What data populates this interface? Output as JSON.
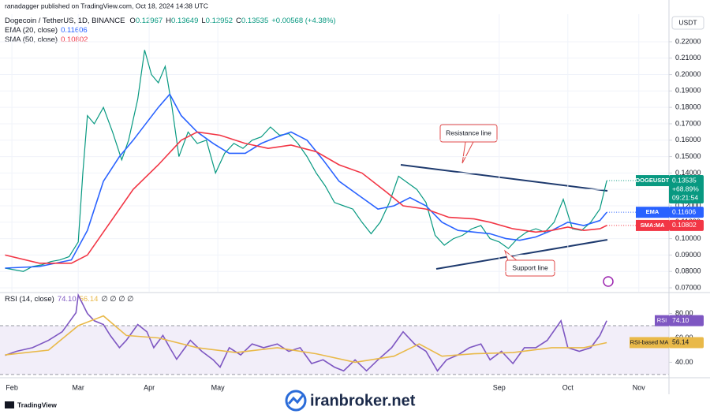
{
  "ui": {
    "publisher": "ranadagger published on TradingView.com, Oct 18, 2024 14:38 UTC",
    "symbol": "Dogecoin / TetherUS, 1D, BINANCE",
    "ohlc": [
      {
        "key": "O",
        "value": 0.12967
      },
      {
        "key": "H",
        "value": 0.13649
      },
      {
        "key": "L",
        "value": 0.12952
      },
      {
        "key": "C",
        "value": 0.13535
      }
    ],
    "change": "+0.00568 (+4.38%)",
    "currency": "USDT",
    "price_change": "+68.89%",
    "countdown": "09:21:54",
    "rsi_extra": "∅ ∅ ∅ ∅",
    "brand": "TradingView",
    "watermark": "iranbroker.net"
  },
  "chart_data": [
    {
      "type": "line",
      "xlim": [
        -5.2,
        287.2
      ],
      "ylim": [
        0.0676,
        0.2368
      ],
      "grid": true,
      "xticks": [
        {
          "value": 0,
          "label": "Feb"
        },
        {
          "value": 29,
          "label": "Mar"
        },
        {
          "value": 60,
          "label": "Apr"
        },
        {
          "value": 90,
          "label": "May"
        },
        {
          "value": 213,
          "label": "Sep"
        },
        {
          "value": 243,
          "label": "Oct"
        },
        {
          "value": 274,
          "label": "Nov"
        }
      ],
      "yticks": [
        {
          "value": 0.07,
          "label": "0.07000"
        },
        {
          "value": 0.08,
          "label": "0.08000"
        },
        {
          "value": 0.09,
          "label": "0.09000"
        },
        {
          "value": 0.1,
          "label": "0.10000"
        },
        {
          "value": 0.11,
          "label": "0.11000"
        },
        {
          "value": 0.12,
          "label": "0.12000"
        },
        {
          "value": 0.13,
          "label": "0.13000"
        },
        {
          "value": 0.14,
          "label": "0.14000"
        },
        {
          "value": 0.15,
          "label": "0.15000"
        },
        {
          "value": 0.16,
          "label": "0.16000"
        },
        {
          "value": 0.17,
          "label": "0.17000"
        },
        {
          "value": 0.18,
          "label": "0.18000"
        },
        {
          "value": 0.19,
          "label": "0.19000"
        },
        {
          "value": 0.2,
          "label": "0.20000"
        },
        {
          "value": 0.21,
          "label": "0.21000"
        },
        {
          "value": 0.22,
          "label": "0.22000"
        }
      ],
      "series": [
        {
          "name": "DOGEUSDT",
          "color": "#089981",
          "x": [
            -3,
            1,
            5,
            9,
            13,
            17,
            21,
            25,
            29,
            31,
            33,
            36,
            40,
            44,
            48,
            51,
            55,
            58,
            61,
            64,
            67,
            70,
            73,
            77,
            81,
            85,
            89,
            93,
            97,
            101,
            105,
            109,
            113,
            117,
            121,
            125,
            129,
            133,
            137,
            141,
            145,
            149,
            153,
            157,
            161,
            165,
            169,
            173,
            177,
            181,
            185,
            189,
            193,
            197,
            201,
            205,
            209,
            213,
            217,
            221,
            225,
            229,
            233,
            237,
            241,
            245,
            249,
            253,
            257,
            260
          ],
          "values": [
            0.082,
            0.081,
            0.08,
            0.083,
            0.084,
            0.086,
            0.087,
            0.089,
            0.098,
            0.14,
            0.175,
            0.17,
            0.18,
            0.165,
            0.148,
            0.16,
            0.185,
            0.215,
            0.2,
            0.195,
            0.205,
            0.18,
            0.15,
            0.165,
            0.158,
            0.16,
            0.14,
            0.152,
            0.158,
            0.155,
            0.16,
            0.162,
            0.168,
            0.163,
            0.164,
            0.158,
            0.15,
            0.14,
            0.132,
            0.122,
            0.12,
            0.118,
            0.11,
            0.103,
            0.11,
            0.122,
            0.138,
            0.134,
            0.13,
            0.122,
            0.102,
            0.096,
            0.1,
            0.102,
            0.106,
            0.108,
            0.1,
            0.098,
            0.094,
            0.1,
            0.104,
            0.106,
            0.104,
            0.11,
            0.124,
            0.106,
            0.105,
            0.11,
            0.118,
            0.13535
          ]
        },
        {
          "name": "EMA (20, close)",
          "short": "EMA",
          "color": "#2962ff",
          "x": [
            -3,
            12,
            26,
            33,
            40,
            47,
            53,
            64,
            69,
            74,
            81,
            88,
            95,
            102,
            109,
            116,
            122,
            129,
            136,
            143,
            153,
            160,
            167,
            174,
            181,
            188,
            195,
            202,
            209,
            216,
            222,
            229,
            236,
            243,
            250,
            257,
            260
          ],
          "values": [
            0.082,
            0.083,
            0.087,
            0.105,
            0.135,
            0.15,
            0.16,
            0.18,
            0.188,
            0.175,
            0.165,
            0.158,
            0.152,
            0.152,
            0.158,
            0.162,
            0.165,
            0.16,
            0.148,
            0.135,
            0.125,
            0.118,
            0.12,
            0.125,
            0.12,
            0.11,
            0.105,
            0.104,
            0.103,
            0.1,
            0.099,
            0.101,
            0.105,
            0.11,
            0.108,
            0.111,
            0.11606
          ]
        },
        {
          "name": "SMA (50, close)",
          "short": "SMA:MA",
          "color": "#f23645",
          "x": [
            -3,
            12,
            26,
            33,
            43,
            53,
            64,
            74,
            81,
            91,
            102,
            112,
            122,
            133,
            143,
            153,
            164,
            171,
            181,
            191,
            202,
            209,
            219,
            229,
            236,
            243,
            250,
            257,
            260
          ],
          "values": [
            0.09,
            0.085,
            0.085,
            0.09,
            0.11,
            0.13,
            0.145,
            0.16,
            0.165,
            0.163,
            0.158,
            0.155,
            0.157,
            0.153,
            0.145,
            0.14,
            0.128,
            0.12,
            0.118,
            0.113,
            0.112,
            0.11,
            0.106,
            0.104,
            0.105,
            0.107,
            0.105,
            0.106,
            0.10802
          ]
        }
      ],
      "annotations": [
        "Resistance line",
        "Support line"
      ]
    },
    {
      "type": "line",
      "title": "RSI (14, close)",
      "xlim": [
        -5.2,
        287.2
      ],
      "ylim": [
        28,
        96.5
      ],
      "band": [
        30,
        70
      ],
      "yticks": [
        {
          "value": 40,
          "label": "40.00"
        },
        {
          "value": 60,
          "label": "60.00"
        },
        {
          "value": 80,
          "label": "80.00"
        }
      ],
      "series": [
        {
          "name": "RSI",
          "color": "#7e57c2",
          "last_label": "74.10",
          "x": [
            -3,
            2,
            9,
            16,
            22,
            28,
            29,
            33,
            36,
            40,
            43,
            47,
            50,
            55,
            59,
            62,
            66,
            69,
            72,
            78,
            83,
            88,
            91,
            95,
            100,
            105,
            110,
            116,
            121,
            126,
            131,
            136,
            141,
            145,
            150,
            155,
            160,
            166,
            171,
            176,
            181,
            186,
            190,
            195,
            200,
            205,
            209,
            214,
            219,
            224,
            229,
            234,
            240,
            243,
            248,
            253,
            257,
            260
          ],
          "values": [
            45.7,
            49,
            52,
            58,
            65,
            80.6,
            95,
            80,
            74,
            71,
            62,
            52,
            58,
            71,
            65,
            52,
            62,
            52,
            42.5,
            58,
            49,
            42,
            36,
            52,
            46,
            55,
            52,
            55,
            49,
            52,
            39,
            42,
            36,
            33,
            42,
            33,
            42,
            52,
            65,
            55,
            49,
            33,
            42,
            46,
            52,
            55,
            42,
            49,
            39,
            52,
            52,
            58,
            74,
            52,
            49,
            52,
            62,
            74.1
          ]
        },
        {
          "name": "RSI-based MA",
          "color": "#e9b949",
          "x": [
            -3,
            16,
            29,
            40,
            50,
            64,
            81,
            98,
            116,
            133,
            150,
            167,
            178,
            188,
            202,
            219,
            236,
            250,
            260
          ],
          "values": [
            46,
            50,
            70,
            78,
            62,
            60,
            52,
            48,
            52,
            47,
            40,
            45,
            55,
            45,
            47,
            48,
            52,
            52,
            56.14
          ]
        }
      ]
    }
  ]
}
